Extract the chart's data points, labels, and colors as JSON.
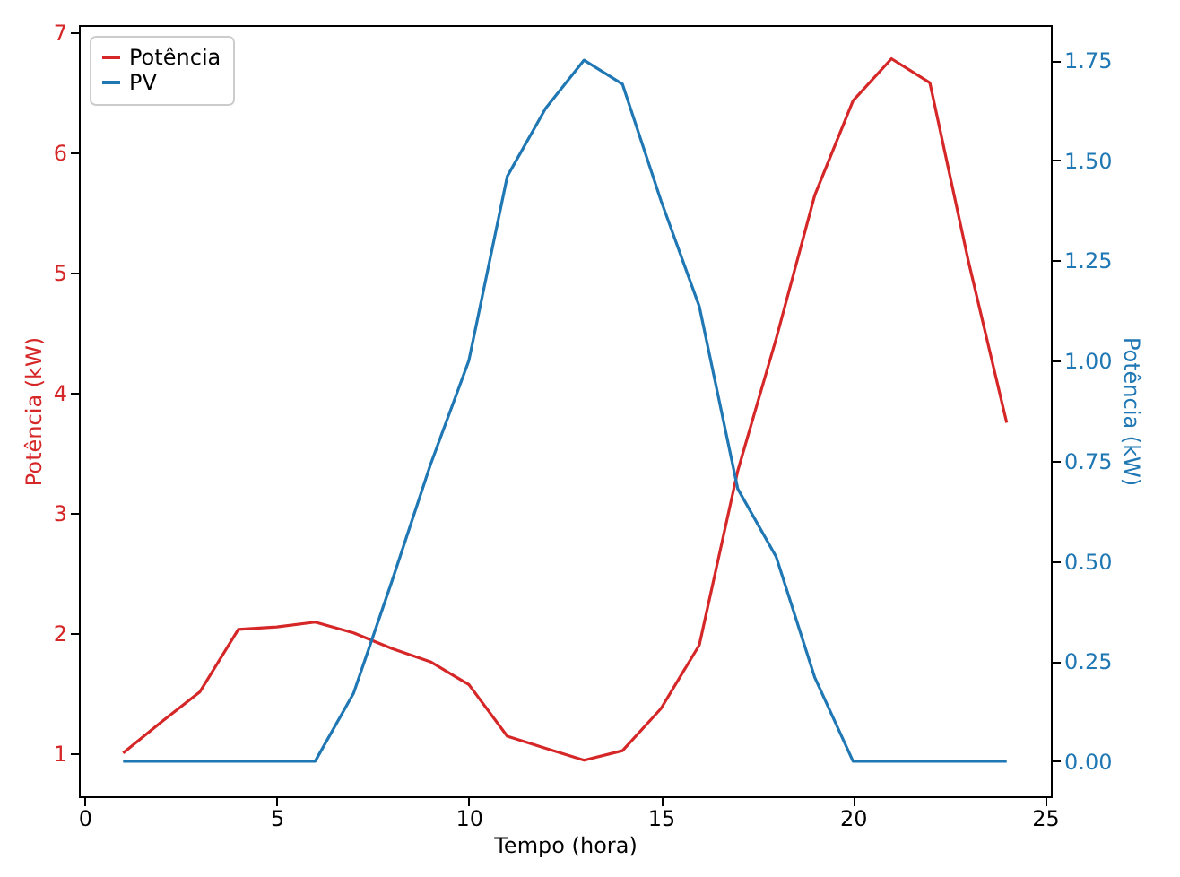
{
  "chart_data": {
    "type": "line",
    "xlabel": "Tempo (hora)",
    "ylabel": "Potência (kW)",
    "y2label": "Potência (kW)",
    "x": [
      1,
      2,
      3,
      4,
      5,
      6,
      7,
      8,
      9,
      10,
      11,
      12,
      13,
      14,
      15,
      16,
      17,
      18,
      19,
      20,
      21,
      22,
      23,
      24
    ],
    "series": [
      {
        "name": "Potência",
        "color": "#d62728",
        "values": [
          1.0,
          1.26,
          1.51,
          2.03,
          2.05,
          2.09,
          2.0,
          1.87,
          1.76,
          1.57,
          1.14,
          1.04,
          0.94,
          1.02,
          1.37,
          1.9,
          3.35,
          4.45,
          5.64,
          6.43,
          6.78,
          6.58,
          5.1,
          3.75
        ]
      },
      {
        "name": "PV",
        "color": "#1f77b4",
        "axis": "y2",
        "values": [
          0,
          0,
          0,
          0,
          0,
          0,
          0.17,
          0.45,
          0.74,
          1.0,
          1.46,
          1.63,
          1.75,
          1.69,
          1.4,
          1.135,
          0.68,
          0.51,
          0.21,
          0,
          0,
          0,
          0,
          0
        ]
      }
    ],
    "xlim": [
      -0.15,
      25.15
    ],
    "xticks": [
      0,
      5,
      10,
      15,
      20,
      25
    ],
    "ylim": [
      0.64,
      7.06
    ],
    "yticks": [
      1,
      2,
      3,
      4,
      5,
      6,
      7
    ],
    "y2lim": [
      -0.0875,
      1.8375
    ],
    "y2ticks": [
      {
        "value": 0,
        "label": "0.00"
      },
      {
        "value": 0.25,
        "label": "0.25"
      },
      {
        "value": 0.5,
        "label": "0.50"
      },
      {
        "value": 0.75,
        "label": "0.75"
      },
      {
        "value": 1,
        "label": "1.00"
      },
      {
        "value": 1.25,
        "label": "1.25"
      },
      {
        "value": 1.5,
        "label": "1.50"
      },
      {
        "value": 1.75,
        "label": "1.75"
      }
    ],
    "legend": "top left",
    "grid": false,
    "marker": "none",
    "line_style": "solid"
  }
}
